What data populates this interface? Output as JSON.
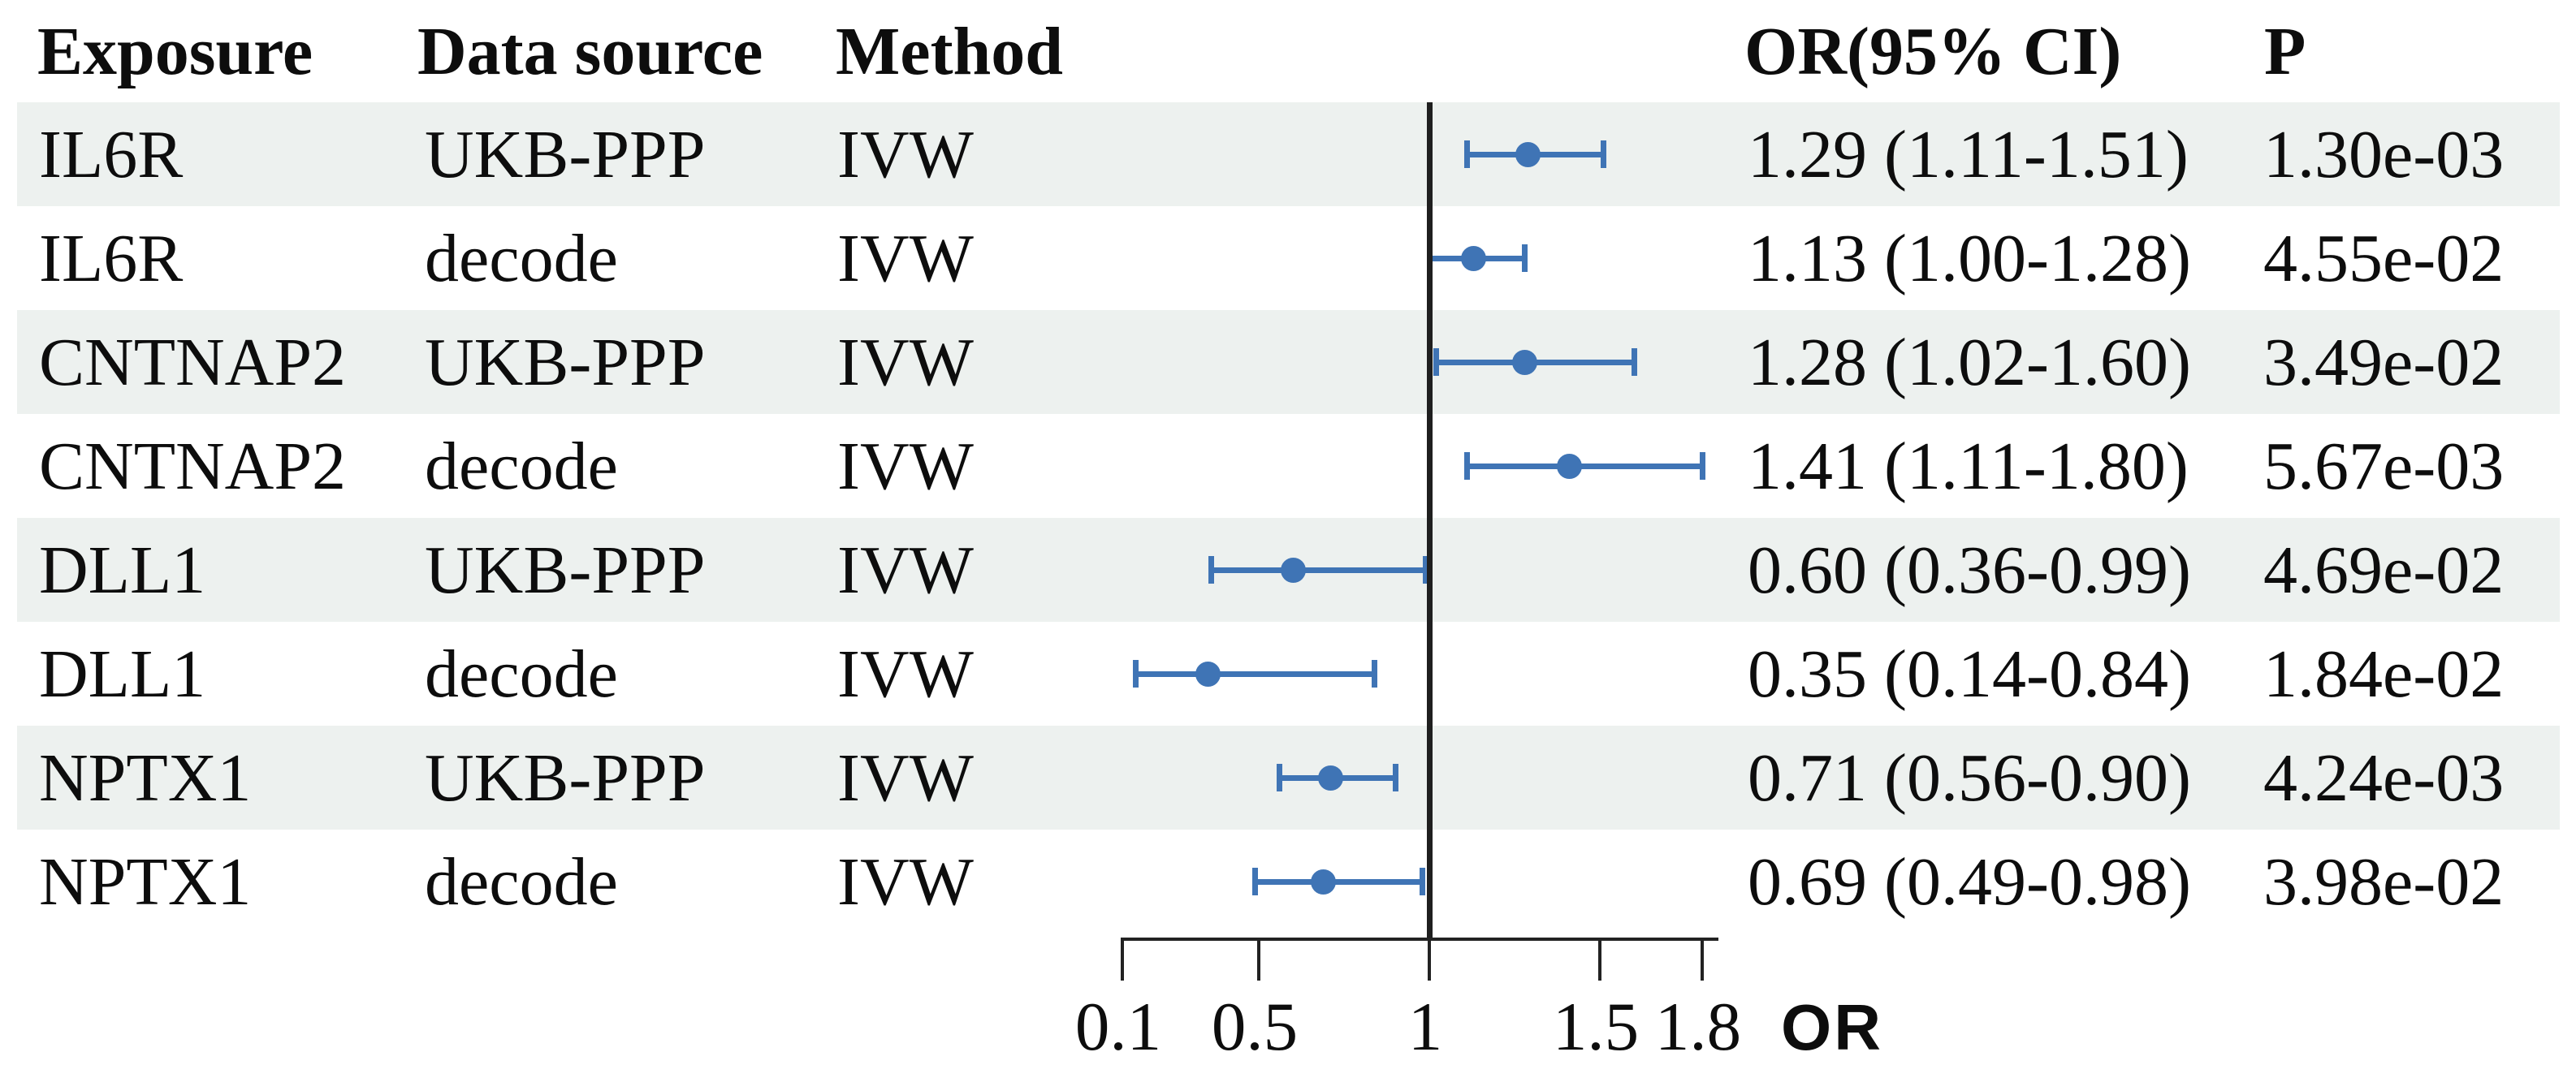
{
  "header": {
    "exposure": "Exposure",
    "data_source": "Data source",
    "method": "Method",
    "or_ci": "OR(95% CI)",
    "p": "P"
  },
  "axis": {
    "label": "OR",
    "tick_labels": [
      "0.1",
      "0.5",
      "1",
      "1.5",
      "1.8"
    ]
  },
  "colors": {
    "marker_blue": "#3f74b5",
    "row_shade": "#edf1ef",
    "line_black": "#222222"
  },
  "chart_data": {
    "type": "scatter",
    "subtype": "forest_plot",
    "title": "",
    "xlabel": "OR",
    "xlim": [
      0.1,
      1.85
    ],
    "xticks": [
      0.1,
      0.5,
      1,
      1.5,
      1.8
    ],
    "reference_line_x": 1,
    "columns": [
      "Exposure",
      "Data source",
      "Method",
      "OR(95% CI)",
      "P"
    ],
    "rows": [
      {
        "exposure": "IL6R",
        "data_source": "UKB-PPP",
        "method": "IVW",
        "or": 1.29,
        "ci_low": 1.11,
        "ci_high": 1.51,
        "or_ci": "1.29 (1.11-1.51)",
        "p": "1.30e-03"
      },
      {
        "exposure": "IL6R",
        "data_source": "decode",
        "method": "IVW",
        "or": 1.13,
        "ci_low": 1.0,
        "ci_high": 1.28,
        "or_ci": "1.13 (1.00-1.28)",
        "p": "4.55e-02"
      },
      {
        "exposure": "CNTNAP2",
        "data_source": "UKB-PPP",
        "method": "IVW",
        "or": 1.28,
        "ci_low": 1.02,
        "ci_high": 1.6,
        "or_ci": "1.28 (1.02-1.60)",
        "p": "3.49e-02"
      },
      {
        "exposure": "CNTNAP2",
        "data_source": "decode",
        "method": "IVW",
        "or": 1.41,
        "ci_low": 1.11,
        "ci_high": 1.8,
        "or_ci": "1.41 (1.11-1.80)",
        "p": "5.67e-03"
      },
      {
        "exposure": "DLL1",
        "data_source": "UKB-PPP",
        "method": "IVW",
        "or": 0.6,
        "ci_low": 0.36,
        "ci_high": 0.99,
        "or_ci": "0.60 (0.36-0.99)",
        "p": "4.69e-02"
      },
      {
        "exposure": "DLL1",
        "data_source": "decode",
        "method": "IVW",
        "or": 0.35,
        "ci_low": 0.14,
        "ci_high": 0.84,
        "or_ci": "0.35 (0.14-0.84)",
        "p": "1.84e-02"
      },
      {
        "exposure": "NPTX1",
        "data_source": "UKB-PPP",
        "method": "IVW",
        "or": 0.71,
        "ci_low": 0.56,
        "ci_high": 0.9,
        "or_ci": "0.71 (0.56-0.90)",
        "p": "4.24e-03"
      },
      {
        "exposure": "NPTX1",
        "data_source": "decode",
        "method": "IVW",
        "or": 0.69,
        "ci_low": 0.49,
        "ci_high": 0.98,
        "or_ci": "0.69 (0.49-0.98)",
        "p": "3.98e-02"
      }
    ]
  }
}
